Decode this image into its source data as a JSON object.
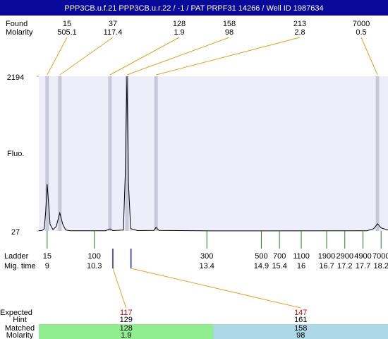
{
  "chart_data": {
    "type": "electropherogram",
    "title": "PPP3CB.u.f.21  PPP3CB.u.r.22 / -1 / PAT PRPF31 14266 / Well ID 1987634",
    "ylabel": "Fluo.",
    "ylim": [
      27,
      2194
    ],
    "yticks": [
      27,
      2194
    ],
    "xlim": [
      8.77,
      18.39
    ],
    "plot_color": "#eeeefa",
    "found": {
      "label": "Found",
      "molarity_label": "Molarity",
      "sizes": [
        15,
        37,
        128,
        158,
        213,
        7000
      ],
      "molarity": [
        505.1,
        117.4,
        1.9,
        98,
        2.8,
        0.5
      ],
      "times": [
        9.0,
        9.35,
        10.73,
        11.2,
        12.0,
        18.1
      ],
      "band_color": "#c8c8d8",
      "line_color": "#f0a020"
    },
    "trace": {
      "color": "#000000",
      "times": [
        8.77,
        8.86,
        8.92,
        8.96,
        9.0,
        9.04,
        9.08,
        9.16,
        9.25,
        9.35,
        9.43,
        9.51,
        9.64,
        10.61,
        10.73,
        10.81,
        11.1,
        11.15,
        11.2,
        11.24,
        11.3,
        11.49,
        11.94,
        12.0,
        12.08,
        13.53,
        17.81,
        18.0,
        18.1,
        18.2,
        18.39
      ],
      "values": [
        30,
        33,
        60,
        300,
        682,
        420,
        120,
        45,
        90,
        279,
        120,
        40,
        30,
        30,
        57,
        32,
        40,
        800,
        2194,
        700,
        60,
        32,
        35,
        77,
        35,
        28,
        30,
        60,
        128,
        70,
        40
      ]
    },
    "ladder": {
      "label": "Ladder",
      "time_label": "Mig. time",
      "color": "#208020",
      "sizes": [
        15,
        100,
        300,
        500,
        700,
        1100,
        1900,
        2900,
        4900,
        7000
      ],
      "times": [
        9,
        10.3,
        13.4,
        14.9,
        15.4,
        16,
        16.7,
        17.2,
        17.7,
        18.2
      ]
    },
    "expected": {
      "labels": [
        "Expected",
        "Hint",
        "Matched",
        "Molarity"
      ],
      "marker_color": "#2020c0",
      "columns": [
        {
          "expected": 117,
          "hint": 129,
          "matched": 128,
          "molarity": 1.9,
          "time": 10.81,
          "color": "#90ee90"
        },
        {
          "expected": 147,
          "hint": 161,
          "matched": 158,
          "molarity": 98,
          "time": 11.31,
          "color": "#add8e6"
        }
      ]
    }
  }
}
